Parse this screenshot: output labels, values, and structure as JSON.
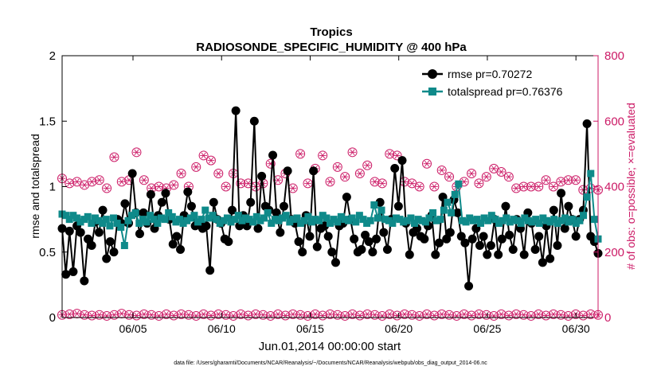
{
  "chart_data": {
    "type": "line",
    "title": "Tropics",
    "subtitle": "RADIOSONDE_SPECIFIC_HUMIDITY @ 400 hPa",
    "xlabel": "Jun.01,2014 00:00:00 start",
    "ylabel_left": "rmse and totalspread",
    "ylabel_right": "# of obs: o=possible; ×=evaluated",
    "footnote": "data file: /Users/gharamti/Documents/NCAR/Reanalysis/~/Documents/NCAR/Reanalysis/webpub/obs_diag_output_2014-06.nc",
    "xlim": [
      1,
      31.25
    ],
    "ylim_left": [
      0,
      2
    ],
    "ylim_right": [
      0,
      800
    ],
    "x_ticks": [
      5,
      10,
      15,
      20,
      25,
      30
    ],
    "x_tick_labels": [
      "06/05",
      "06/10",
      "06/15",
      "06/20",
      "06/25",
      "06/30"
    ],
    "y_left_ticks": [
      "0",
      "0.5",
      "1",
      "1.5",
      "2"
    ],
    "y_left_tick_values": [
      0,
      0.5,
      1,
      1.5,
      2
    ],
    "y_right_ticks": [
      "0",
      "200",
      "400",
      "600",
      "800"
    ],
    "y_right_tick_values": [
      0,
      200,
      400,
      600,
      800
    ],
    "colors": {
      "rmse": "#000000",
      "totalspread": "#0f8a8a",
      "obs": "#cc1a66"
    },
    "series": [
      {
        "name": "rmse pr=0.70272",
        "axis": "left",
        "values": [
          0.68,
          0.33,
          0.66,
          0.35,
          0.7,
          0.65,
          0.28,
          0.6,
          0.55,
          0.73,
          0.65,
          0.82,
          0.45,
          0.58,
          0.5,
          0.75,
          0.72,
          0.87,
          0.72,
          1.1,
          0.8,
          0.64,
          0.8,
          0.72,
          0.94,
          0.68,
          0.78,
          0.88,
          0.95,
          0.75,
          0.56,
          0.62,
          0.52,
          0.78,
          0.96,
          0.85,
          0.7,
          0.72,
          0.68,
          0.7,
          0.36,
          0.88,
          0.75,
          0.72,
          0.6,
          0.58,
          0.82,
          1.58,
          0.7,
          0.78,
          0.7,
          0.88,
          1.5,
          0.68,
          1.08,
          0.85,
          0.82,
          1.24,
          0.8,
          0.65,
          0.85,
          1.12,
          0.75,
          0.72,
          0.58,
          0.5,
          0.78,
          0.62,
          1.12,
          0.54,
          0.68,
          0.7,
          0.62,
          0.5,
          0.42,
          0.7,
          0.72,
          0.92,
          0.75,
          0.6,
          0.5,
          0.52,
          0.63,
          0.58,
          0.5,
          0.6,
          0.88,
          0.65,
          0.52,
          0.75,
          1.14,
          0.85,
          1.2,
          0.72,
          0.48,
          0.65,
          0.68,
          0.62,
          0.6,
          0.7,
          0.78,
          0.48,
          0.57,
          0.92,
          0.6,
          0.65,
          0.9,
          0.8,
          0.62,
          0.57,
          0.24,
          0.6,
          0.68,
          0.55,
          0.62,
          0.48,
          0.55,
          0.75,
          0.48,
          0.6,
          0.85,
          0.63,
          0.52,
          0.75,
          0.68,
          0.48,
          0.8,
          0.72,
          0.52,
          0.62,
          0.42,
          0.7,
          0.45,
          0.82,
          0.55,
          0.95,
          0.68,
          0.85,
          0.75,
          0.62,
          0.75,
          0.82,
          1.48,
          0.62,
          0.58,
          0.49
        ]
      },
      {
        "name": "totalspread pr=0.76376",
        "axis": "left",
        "values": [
          0.79,
          0.78,
          0.75,
          0.78,
          0.76,
          0.73,
          0.75,
          0.77,
          0.72,
          0.76,
          0.74,
          0.72,
          0.75,
          0.7,
          0.76,
          0.72,
          0.69,
          0.55,
          0.74,
          0.78,
          0.8,
          0.72,
          0.75,
          0.73,
          0.78,
          0.75,
          0.72,
          0.76,
          0.75,
          0.8,
          0.77,
          0.73,
          0.75,
          0.72,
          0.74,
          0.76,
          0.78,
          0.73,
          0.75,
          0.82,
          0.76,
          0.78,
          0.75,
          0.72,
          0.74,
          0.76,
          0.73,
          0.75,
          0.78,
          0.74,
          0.76,
          0.75,
          0.73,
          0.77,
          0.74,
          0.76,
          0.8,
          0.72,
          0.75,
          0.74,
          0.76,
          0.78,
          0.73,
          0.75,
          0.76,
          0.72,
          0.74,
          0.77,
          0.73,
          0.75,
          0.74,
          0.78,
          0.76,
          0.72,
          0.75,
          0.73,
          0.77,
          0.75,
          0.74,
          0.76,
          0.73,
          0.78,
          0.75,
          0.72,
          0.74,
          0.86,
          0.76,
          0.82,
          0.75,
          0.74,
          0.72,
          0.76,
          0.75,
          0.73,
          0.74,
          0.76,
          0.72,
          0.75,
          0.74,
          0.73,
          0.76,
          0.8,
          0.74,
          0.75,
          0.82,
          0.88,
          0.8,
          0.94,
          1.02,
          0.74,
          0.73,
          0.76,
          0.74,
          0.75,
          0.72,
          0.76,
          0.74,
          0.78,
          0.75,
          0.72,
          0.74,
          0.76,
          0.73,
          0.75,
          0.74,
          0.72,
          0.76,
          0.74,
          0.73,
          0.75,
          0.72,
          0.76,
          0.74,
          0.73,
          0.75,
          0.72,
          0.74,
          0.76,
          0.73,
          0.75,
          0.72,
          0.74,
          0.78,
          0.92,
          1.1,
          0.75,
          0.6
        ]
      },
      {
        "name": "obs possible/evaluated (upper)",
        "axis": "right",
        "values": [
          425,
          400,
          410,
          400,
          415,
          435,
          405,
          425,
          415,
          410,
          420,
          510,
          395,
          400,
          490,
          380,
          415,
          395,
          420,
          395,
          505,
          395,
          420,
          440,
          395,
          410,
          400,
          440,
          395,
          420,
          405,
          445,
          440,
          445,
          400,
          410,
          460,
          430,
          495,
          450,
          480,
          470,
          440,
          430,
          400,
          480,
          440,
          460,
          410,
          400,
          410,
          510,
          400,
          415,
          410,
          435,
          470,
          415,
          420,
          495,
          440,
          450,
          395,
          445,
          500,
          440,
          410,
          450,
          455,
          420,
          495,
          420,
          415,
          420,
          460,
          400,
          430,
          445,
          505,
          420,
          440,
          395,
          465,
          430,
          415,
          435,
          410,
          440,
          500,
          425,
          495,
          430,
          415,
          425,
          410,
          405,
          400,
          440,
          470,
          430,
          400,
          405,
          450,
          440,
          430,
          405,
          400,
          395,
          415,
          430,
          440,
          440,
          410,
          400,
          430,
          460,
          455,
          430,
          445,
          435,
          430,
          420,
          395,
          395,
          400,
          415,
          400,
          410,
          400,
          385,
          420,
          385,
          400,
          395,
          415,
          400,
          420,
          395,
          420,
          425,
          390,
          410,
          395,
          405,
          390
        ]
      },
      {
        "name": "obs possible/evaluated (lower)",
        "axis": "right",
        "values": [
          8,
          5,
          10,
          6,
          12,
          5,
          8,
          10,
          6,
          5,
          8,
          10,
          5,
          6,
          8,
          10,
          12,
          5,
          8,
          5,
          6,
          8,
          10,
          5,
          8,
          6,
          5,
          8,
          10,
          5,
          6,
          8,
          10,
          5,
          8,
          6,
          5,
          8,
          10,
          5,
          6,
          8,
          10,
          5,
          8,
          6,
          5,
          8,
          10,
          5,
          6,
          8,
          10,
          5,
          8,
          6,
          5,
          8,
          10,
          5,
          6,
          8,
          10,
          5,
          8,
          6,
          5,
          8,
          10,
          5,
          6,
          8,
          10,
          5,
          8,
          6,
          5,
          8,
          10,
          5,
          6,
          8,
          10,
          5,
          8,
          6,
          5,
          8,
          10,
          5,
          6,
          8,
          10,
          5,
          8,
          6,
          5,
          8,
          10,
          5,
          6,
          8,
          10,
          5,
          8,
          6,
          5,
          8,
          10,
          5,
          6,
          8,
          10,
          5,
          8,
          6,
          5,
          8,
          10,
          5,
          6,
          8,
          10,
          5,
          8,
          6,
          5,
          8,
          10,
          5,
          6,
          8,
          10,
          5,
          8,
          6,
          5,
          8,
          10,
          5,
          6,
          8,
          10,
          5,
          8
        ]
      }
    ],
    "legend": {
      "position": "top-right",
      "entries": [
        "rmse pr=0.70272",
        "totalspread pr=0.76376"
      ]
    }
  }
}
